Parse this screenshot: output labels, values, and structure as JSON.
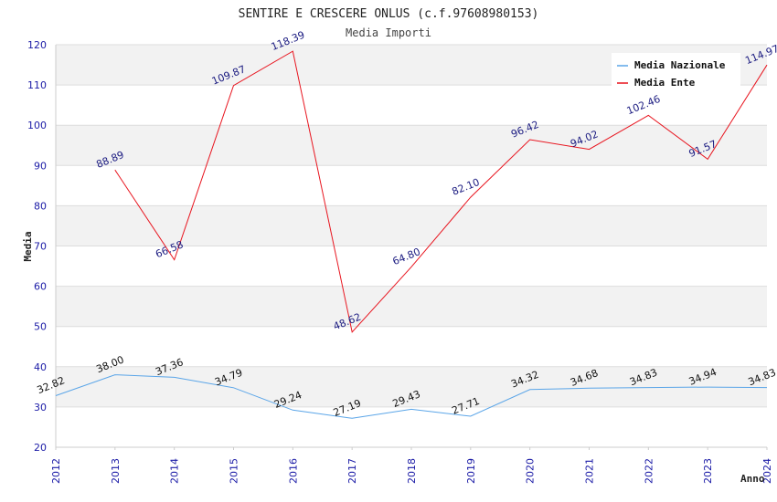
{
  "chart_data": {
    "type": "line",
    "title": "SENTIRE E CRESCERE ONLUS (c.f.97608980153)",
    "subtitle": "Media Importi",
    "xlabel": "Anno",
    "ylabel": "Media",
    "ylim": [
      20,
      120
    ],
    "yticks": [
      "20",
      "30",
      "40",
      "50",
      "60",
      "70",
      "80",
      "90",
      "100",
      "110",
      "120"
    ],
    "categories": [
      "2012",
      "2013",
      "2014",
      "2015",
      "2016",
      "2017",
      "2018",
      "2019",
      "2020",
      "2021",
      "2022",
      "2023",
      "2024"
    ],
    "grid": true,
    "legend_position": "top-right",
    "series": [
      {
        "name": "Media Nazionale",
        "color": "#5aa5e8",
        "label_color": "#111111",
        "values": [
          32.82,
          38.0,
          37.36,
          34.79,
          29.24,
          27.19,
          29.43,
          27.71,
          34.32,
          34.68,
          34.83,
          34.94,
          34.83
        ],
        "labels": [
          "32.82",
          "38.00",
          "37.36",
          "34.79",
          "29.24",
          "27.19",
          "29.43",
          "27.71",
          "34.32",
          "34.68",
          "34.83",
          "34.94",
          "34.83"
        ]
      },
      {
        "name": "Media Ente",
        "color": "#e8141e",
        "label_color": "#1a1a80",
        "values": [
          null,
          88.89,
          66.58,
          109.87,
          118.39,
          48.62,
          64.8,
          82.1,
          96.42,
          94.02,
          102.46,
          91.57,
          114.97
        ],
        "labels": [
          null,
          "88.89",
          "66.58",
          "109.87",
          "118.39",
          "48.62",
          "64.80",
          "82.10",
          "96.42",
          "94.02",
          "102.46",
          "91.57",
          "114.97"
        ]
      }
    ]
  }
}
